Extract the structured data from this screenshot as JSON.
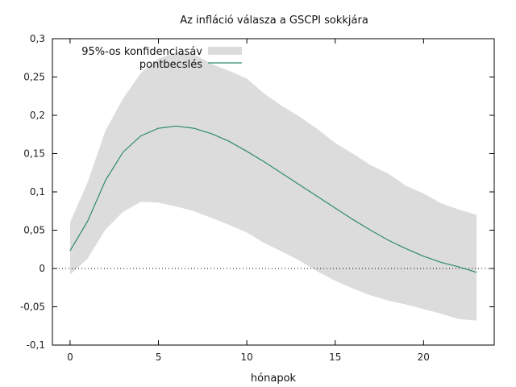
{
  "chart_data": {
    "type": "line",
    "title": "Az infláció válasza a GSCPI sokkjára",
    "xlabel": "hónapok",
    "ylabel": "",
    "xlim": [
      -1,
      24
    ],
    "ylim": [
      -0.1,
      0.3
    ],
    "x_ticks": [
      0,
      5,
      10,
      15,
      20
    ],
    "x_tick_labels": [
      "0",
      "5",
      "10",
      "15",
      "20"
    ],
    "y_ticks": [
      -0.1,
      -0.05,
      0,
      0.05,
      0.1,
      0.15,
      0.2,
      0.25,
      0.3
    ],
    "y_tick_labels": [
      "-0,1",
      "-0,05",
      "0",
      "0,05",
      "0,1",
      "0,15",
      "0,2",
      "0,25",
      "0,3"
    ],
    "zero_line": true,
    "grid": false,
    "legend_position": "top-left",
    "x": [
      0,
      1,
      2,
      3,
      4,
      5,
      6,
      7,
      8,
      9,
      10,
      11,
      12,
      13,
      14,
      15,
      16,
      17,
      18,
      19,
      20,
      21,
      22,
      23
    ],
    "band": {
      "name": "95%-os konfidenciasáv",
      "color": "#dcdcdc",
      "lower": [
        -0.008,
        0.013,
        0.051,
        0.074,
        0.087,
        0.086,
        0.081,
        0.075,
        0.066,
        0.057,
        0.047,
        0.033,
        0.022,
        0.01,
        -0.004,
        -0.016,
        -0.026,
        -0.035,
        -0.042,
        -0.047,
        -0.053,
        -0.059,
        -0.066,
        -0.068
      ],
      "upper": [
        0.06,
        0.113,
        0.18,
        0.222,
        0.255,
        0.274,
        0.282,
        0.28,
        0.267,
        0.258,
        0.248,
        0.228,
        0.212,
        0.198,
        0.182,
        0.164,
        0.15,
        0.135,
        0.124,
        0.108,
        0.098,
        0.085,
        0.077,
        0.07
      ]
    },
    "series": [
      {
        "name": "pontbecslés",
        "color": "#2e8b6a",
        "values": [
          0.023,
          0.062,
          0.115,
          0.152,
          0.173,
          0.183,
          0.186,
          0.183,
          0.176,
          0.166,
          0.153,
          0.139,
          0.124,
          0.109,
          0.094,
          0.079,
          0.064,
          0.05,
          0.037,
          0.026,
          0.016,
          0.008,
          0.002,
          -0.005
        ]
      }
    ]
  }
}
